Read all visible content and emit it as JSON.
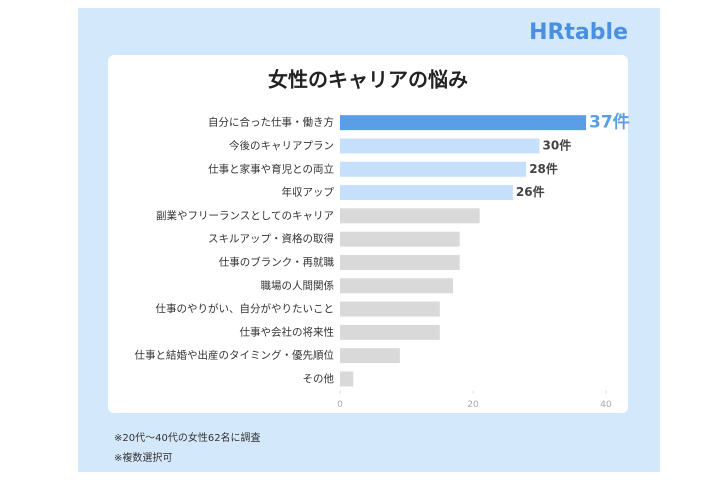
{
  "logo": "HRtable",
  "chart_data": {
    "type": "hbar",
    "title": "女性のキャリアの悩み",
    "categories": [
      "自分に合った仕事・働き方",
      "今後のキャリアプラン",
      "仕事と家事や育児との両立",
      "年収アップ",
      "副業やフリーランスとしてのキャリア",
      "スキルアップ・資格の取得",
      "仕事のブランク・再就職",
      "職場の人間関係",
      "仕事のやりがい、自分がやりたいこと",
      "仕事や会社の将来性",
      "仕事と結婚や出産のタイミング・優先順位",
      "その他"
    ],
    "values": [
      37,
      30,
      28,
      26,
      21,
      18,
      18,
      17,
      15,
      15,
      9,
      2
    ],
    "value_labels": [
      "37件",
      "30件",
      "28件",
      "26件",
      null,
      null,
      null,
      null,
      null,
      null,
      null,
      null
    ],
    "colors": [
      "#5b9ee8",
      "#c6e0fb",
      "#c6e0fb",
      "#c6e0fb",
      "#d9d9d9",
      "#d9d9d9",
      "#d9d9d9",
      "#d9d9d9",
      "#d9d9d9",
      "#d9d9d9",
      "#d9d9d9",
      "#d9d9d9"
    ],
    "xlim": [
      0,
      40
    ],
    "xticks": [
      0,
      20,
      40
    ],
    "notes": [
      "※20代〜40代の女性62名に調査",
      "※複数選択可"
    ]
  }
}
